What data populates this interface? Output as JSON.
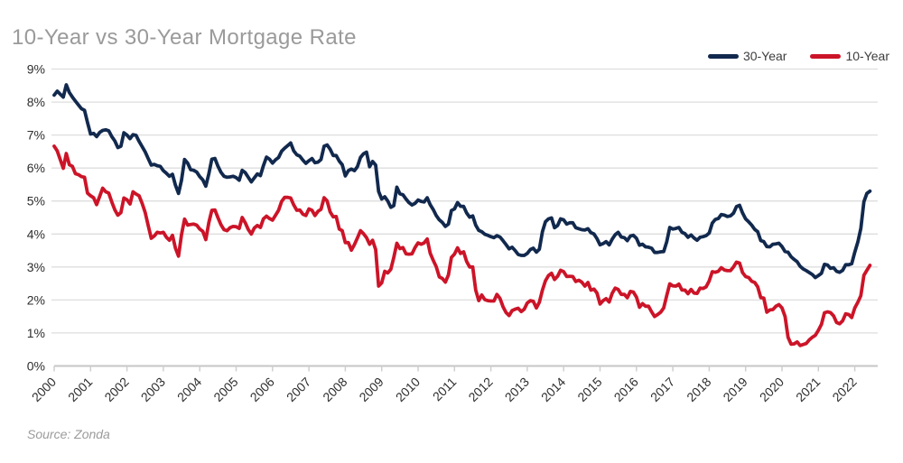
{
  "header": {
    "title": "10-Year vs 30-Year Mortgage Rate"
  },
  "legend": [
    {
      "label": "30-Year",
      "color": "#12294E"
    },
    {
      "label": "10-Year",
      "color": "#CC1428"
    }
  ],
  "footer": {
    "source": "Source: Zonda"
  },
  "colors": {
    "title_text": "#9a9a9a",
    "axis_label_text": "#2e2e2e",
    "gridline": "#dedede",
    "axis_line": "#c6c6c6",
    "tick_mark": "#cfcfcf"
  },
  "chart_data": {
    "type": "line",
    "title": "10-Year vs 30-Year Mortgage Rate",
    "xlabel": "",
    "ylabel": "",
    "ylim": [
      0,
      9
    ],
    "grid": "horizontal",
    "legend_position": "top-right",
    "frequency": "monthly",
    "x_range": [
      "2000-01",
      "2022-06"
    ],
    "yticks": [
      "0%",
      "1%",
      "2%",
      "3%",
      "4%",
      "5%",
      "6%",
      "7%",
      "8%",
      "9%"
    ],
    "xticks": [
      "2000",
      "2001",
      "2002",
      "2003",
      "2004",
      "2005",
      "2006",
      "2007",
      "2008",
      "2009",
      "2010",
      "2011",
      "2012",
      "2013",
      "2014",
      "2015",
      "2016",
      "2017",
      "2018",
      "2019",
      "2020",
      "2021",
      "2022"
    ],
    "series": [
      {
        "name": "30-Year",
        "color": "#12294E",
        "values": [
          8.21,
          8.33,
          8.24,
          8.15,
          8.52,
          8.29,
          8.15,
          8.03,
          7.91,
          7.8,
          7.75,
          7.38,
          7.03,
          7.05,
          6.95,
          7.08,
          7.14,
          7.16,
          7.13,
          6.95,
          6.82,
          6.62,
          6.66,
          7.07,
          7.0,
          6.89,
          7.01,
          6.99,
          6.81,
          6.65,
          6.49,
          6.29,
          6.09,
          6.11,
          6.07,
          6.05,
          5.92,
          5.84,
          5.75,
          5.81,
          5.48,
          5.23,
          5.63,
          6.26,
          6.15,
          5.95,
          5.93,
          5.88,
          5.74,
          5.64,
          5.45,
          5.83,
          6.27,
          6.29,
          6.06,
          5.87,
          5.75,
          5.72,
          5.73,
          5.75,
          5.71,
          5.63,
          5.93,
          5.86,
          5.72,
          5.58,
          5.7,
          5.82,
          5.77,
          6.07,
          6.33,
          6.27,
          6.15,
          6.25,
          6.32,
          6.51,
          6.6,
          6.68,
          6.76,
          6.52,
          6.4,
          6.36,
          6.24,
          6.14,
          6.22,
          6.29,
          6.16,
          6.18,
          6.26,
          6.66,
          6.7,
          6.57,
          6.38,
          6.38,
          6.21,
          6.1,
          5.76,
          5.92,
          5.97,
          5.92,
          6.04,
          6.32,
          6.43,
          6.48,
          6.04,
          6.2,
          6.09,
          5.29,
          5.06,
          5.13,
          5.0,
          4.81,
          4.86,
          5.42,
          5.22,
          5.19,
          5.06,
          4.95,
          4.88,
          4.93,
          5.03,
          4.99,
          4.97,
          5.1,
          4.89,
          4.74,
          4.56,
          4.43,
          4.35,
          4.23,
          4.3,
          4.71,
          4.76,
          4.95,
          4.84,
          4.84,
          4.64,
          4.51,
          4.55,
          4.27,
          4.11,
          4.07,
          3.99,
          3.96,
          3.92,
          3.89,
          3.95,
          3.91,
          3.8,
          3.68,
          3.55,
          3.6,
          3.5,
          3.38,
          3.35,
          3.35,
          3.41,
          3.53,
          3.57,
          3.45,
          3.54,
          4.07,
          4.37,
          4.46,
          4.49,
          4.19,
          4.26,
          4.46,
          4.43,
          4.3,
          4.34,
          4.34,
          4.19,
          4.16,
          4.13,
          4.12,
          4.16,
          4.04,
          4.0,
          3.86,
          3.67,
          3.71,
          3.77,
          3.67,
          3.84,
          3.98,
          4.05,
          3.91,
          3.89,
          3.8,
          3.94,
          3.96,
          3.87,
          3.66,
          3.69,
          3.61,
          3.6,
          3.57,
          3.44,
          3.44,
          3.46,
          3.47,
          3.77,
          4.2,
          4.15,
          4.17,
          4.2,
          4.05,
          4.01,
          3.9,
          3.97,
          3.88,
          3.81,
          3.9,
          3.92,
          3.95,
          4.03,
          4.33,
          4.44,
          4.47,
          4.59,
          4.57,
          4.53,
          4.55,
          4.63,
          4.83,
          4.87,
          4.64,
          4.46,
          4.37,
          4.27,
          4.14,
          4.07,
          3.8,
          3.77,
          3.62,
          3.61,
          3.69,
          3.7,
          3.72,
          3.62,
          3.47,
          3.45,
          3.31,
          3.23,
          3.16,
          3.02,
          2.94,
          2.89,
          2.83,
          2.77,
          2.68,
          2.74,
          2.81,
          3.08,
          3.06,
          2.96,
          2.98,
          2.87,
          2.84,
          2.9,
          3.07,
          3.07,
          3.1,
          3.45,
          3.76,
          4.17,
          4.98,
          5.23,
          5.3
        ]
      },
      {
        "name": "10-Year",
        "color": "#CC1428",
        "values": [
          6.66,
          6.52,
          6.26,
          5.99,
          6.44,
          6.1,
          6.05,
          5.83,
          5.8,
          5.74,
          5.72,
          5.24,
          5.16,
          5.1,
          4.89,
          5.14,
          5.39,
          5.28,
          5.24,
          4.97,
          4.73,
          4.57,
          4.65,
          5.09,
          5.04,
          4.91,
          5.28,
          5.21,
          5.16,
          4.93,
          4.65,
          4.26,
          3.87,
          3.94,
          4.05,
          4.03,
          4.05,
          3.9,
          3.81,
          3.96,
          3.57,
          3.33,
          3.98,
          4.45,
          4.27,
          4.29,
          4.3,
          4.27,
          4.15,
          4.08,
          3.83,
          4.35,
          4.72,
          4.73,
          4.5,
          4.28,
          4.13,
          4.1,
          4.19,
          4.23,
          4.22,
          4.17,
          4.5,
          4.34,
          4.14,
          4.0,
          4.18,
          4.26,
          4.2,
          4.46,
          4.54,
          4.47,
          4.42,
          4.57,
          4.72,
          4.99,
          5.11,
          5.11,
          5.09,
          4.88,
          4.72,
          4.73,
          4.6,
          4.56,
          4.76,
          4.72,
          4.56,
          4.69,
          4.75,
          5.1,
          5.0,
          4.67,
          4.52,
          4.53,
          4.15,
          4.1,
          3.74,
          3.74,
          3.51,
          3.68,
          3.88,
          4.1,
          4.01,
          3.89,
          3.69,
          3.81,
          3.53,
          2.42,
          2.52,
          2.87,
          2.82,
          2.93,
          3.29,
          3.72,
          3.56,
          3.59,
          3.4,
          3.39,
          3.4,
          3.59,
          3.73,
          3.69,
          3.73,
          3.85,
          3.42,
          3.2,
          3.01,
          2.7,
          2.65,
          2.54,
          2.76,
          3.29,
          3.39,
          3.58,
          3.41,
          3.46,
          3.17,
          3.0,
          3.0,
          2.3,
          1.98,
          2.15,
          2.01,
          1.98,
          1.97,
          1.97,
          2.17,
          2.05,
          1.8,
          1.62,
          1.53,
          1.68,
          1.72,
          1.75,
          1.65,
          1.72,
          1.91,
          1.98,
          1.96,
          1.76,
          1.93,
          2.3,
          2.58,
          2.74,
          2.81,
          2.62,
          2.72,
          2.9,
          2.86,
          2.71,
          2.72,
          2.71,
          2.56,
          2.6,
          2.54,
          2.42,
          2.53,
          2.3,
          2.33,
          2.21,
          1.88,
          1.98,
          2.04,
          1.94,
          2.2,
          2.36,
          2.32,
          2.17,
          2.17,
          2.07,
          2.26,
          2.24,
          2.09,
          1.78,
          1.89,
          1.81,
          1.81,
          1.64,
          1.5,
          1.56,
          1.63,
          1.76,
          2.14,
          2.49,
          2.43,
          2.42,
          2.48,
          2.3,
          2.3,
          2.19,
          2.32,
          2.21,
          2.2,
          2.36,
          2.35,
          2.4,
          2.58,
          2.86,
          2.84,
          2.87,
          2.98,
          2.91,
          2.89,
          2.89,
          3.0,
          3.15,
          3.12,
          2.83,
          2.71,
          2.68,
          2.57,
          2.53,
          2.4,
          2.07,
          2.06,
          1.63,
          1.7,
          1.71,
          1.81,
          1.86,
          1.76,
          1.5,
          0.87,
          0.66,
          0.67,
          0.73,
          0.62,
          0.65,
          0.68,
          0.79,
          0.87,
          0.93,
          1.08,
          1.26,
          1.61,
          1.64,
          1.62,
          1.52,
          1.32,
          1.28,
          1.37,
          1.58,
          1.56,
          1.47,
          1.76,
          1.93,
          2.13,
          2.75,
          2.9,
          3.05
        ]
      }
    ]
  }
}
